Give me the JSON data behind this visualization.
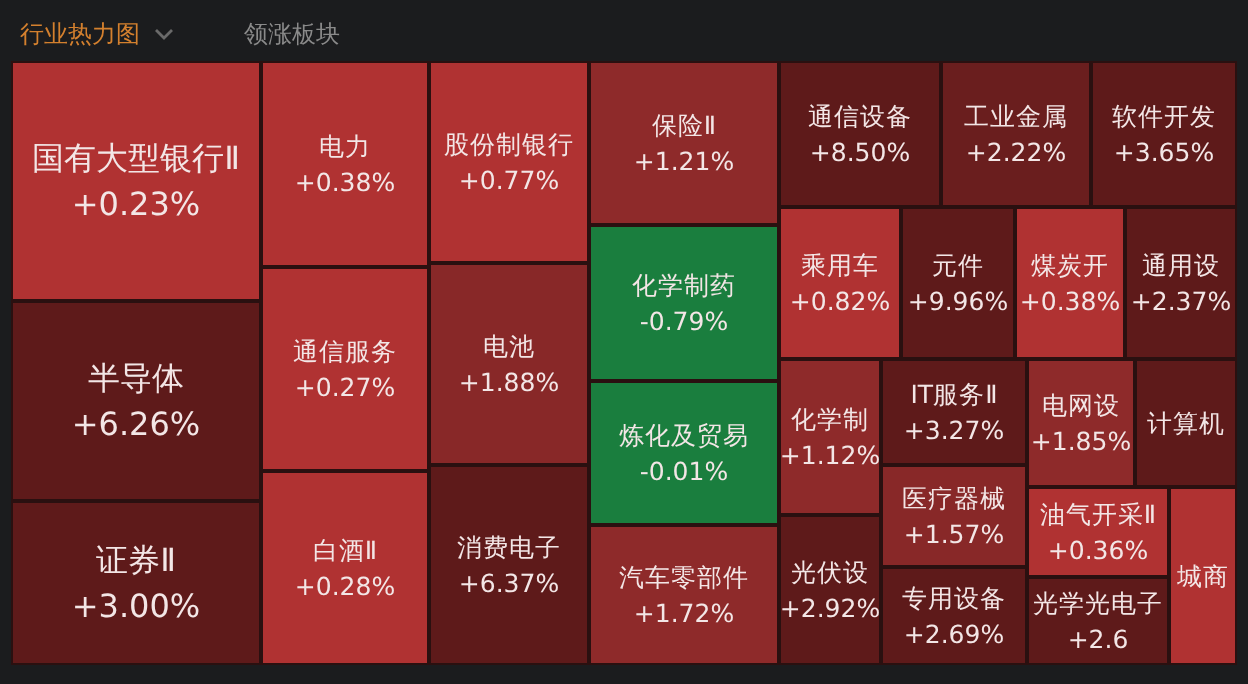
{
  "chart_data": {
    "type": "other",
    "title": "行业热力图",
    "annotations": [
      "领涨板块"
    ],
    "categories": [
      "国有大型银行Ⅱ",
      "半导体",
      "证券Ⅱ",
      "电力",
      "通信服务",
      "白酒Ⅱ",
      "股份制银行",
      "电池",
      "消费电子",
      "保险Ⅱ",
      "化学制药",
      "炼化及贸易",
      "汽车零部件",
      "通信设备",
      "工业金属",
      "软件开发",
      "乘用车",
      "元件",
      "煤炭开",
      "通用设",
      "化学制",
      "光伏设",
      "IT服务Ⅱ",
      "医疗器械",
      "专用设备",
      "电网设",
      "计算机",
      "油气开采Ⅱ",
      "光学光电子",
      "城商"
    ],
    "values": [
      0.23,
      6.26,
      3.0,
      0.38,
      0.27,
      0.28,
      0.77,
      1.88,
      6.37,
      1.21,
      -0.79,
      -0.01,
      1.72,
      8.5,
      2.22,
      3.65,
      0.82,
      9.96,
      0.38,
      2.37,
      1.12,
      2.92,
      3.27,
      1.57,
      2.69,
      1.85,
      null,
      0.36,
      2.6,
      null
    ],
    "value_labels": [
      "+0.23%",
      "+6.26%",
      "+3.00%",
      "+0.38%",
      "+0.27%",
      "+0.28%",
      "+0.77%",
      "+1.88%",
      "+6.37%",
      "+1.21%",
      "-0.79%",
      "-0.01%",
      "+1.72%",
      "+8.50%",
      "+2.22%",
      "+3.65%",
      "+0.82%",
      "+9.96%",
      "+0.38%",
      "+2.37%",
      "+1.12%",
      "+2.92%",
      "+3.27%",
      "+1.57%",
      "+2.69%",
      "+1.85%",
      null,
      "+0.36%",
      "+2.6",
      null
    ],
    "colors": [
      "#b03232",
      "#5e1a1a",
      "#5e1a1a",
      "#b03232",
      "#b03232",
      "#b03232",
      "#b03232",
      "#882828",
      "#5e1a1a",
      "#8e2a2a",
      "#1a7e3e",
      "#1a7e3e",
      "#8e2a2a",
      "#5e1a1a",
      "#6a1e1e",
      "#5e1a1a",
      "#b03232",
      "#5e1a1a",
      "#b03232",
      "#5e1a1a",
      "#8e2a2a",
      "#5e1a1a",
      "#5e1a1a",
      "#882828",
      "#5e1a1a",
      "#8e2a2a",
      "#5e1a1a",
      "#b03232",
      "#5e1a1a",
      "#b03232"
    ]
  }
}
